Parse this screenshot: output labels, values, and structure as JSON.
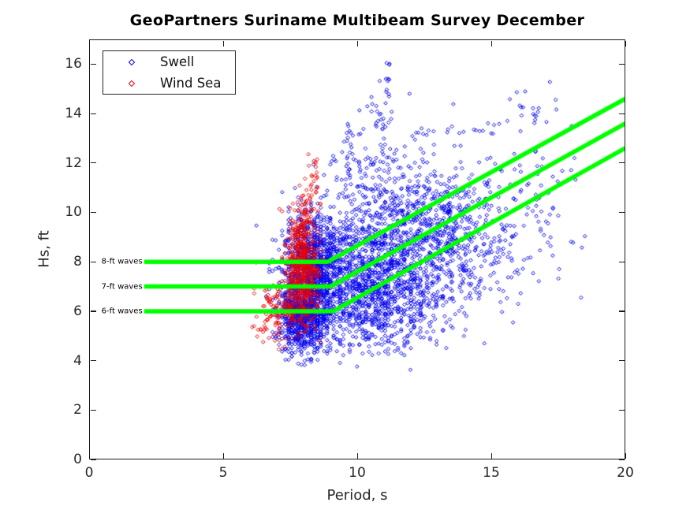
{
  "chart_data": {
    "type": "scatter",
    "title": "GeoPartners Suriname Multibeam Survey December",
    "xlabel": "Period, s",
    "ylabel": "Hs, ft",
    "xlim": [
      0,
      20
    ],
    "ylim": [
      0,
      17
    ],
    "xticks": [
      "0",
      "5",
      "10",
      "15",
      "20"
    ],
    "yticks": [
      "0",
      "2",
      "4",
      "6",
      "8",
      "10",
      "12",
      "14",
      "16"
    ],
    "grid": false,
    "legend_position": "upper-left",
    "background_color": "#ffffff",
    "axis_color": "#1a1a1a",
    "series": [
      {
        "name": "Swell",
        "color": "#0000EE",
        "marker": "open-diamond",
        "approx_count": 4300,
        "clusters": [
          {
            "kind": "gaussian",
            "cx": 8.0,
            "cy": 5.9,
            "sx": 0.5,
            "sy": 0.85,
            "n": 850,
            "ymin": 3.75,
            "qx": 0.12
          },
          {
            "kind": "gaussian",
            "cx": 8.35,
            "cy": 8.0,
            "sx": 0.55,
            "sy": 1.05,
            "n": 750,
            "qx": 0.12
          },
          {
            "kind": "gaussian",
            "cx": 10.5,
            "cy": 7.2,
            "sx": 1.25,
            "sy": 1.45,
            "n": 1450,
            "ymin": 4.2,
            "qx": 0.12
          },
          {
            "kind": "gaussian",
            "cx": 13.3,
            "cy": 8.6,
            "sx": 1.1,
            "sy": 1.5,
            "n": 480
          },
          {
            "kind": "gaussian",
            "cx": 12.3,
            "cy": 10.4,
            "sx": 1.3,
            "sy": 0.8,
            "n": 220
          },
          {
            "kind": "gaussian",
            "cx": 15.9,
            "cy": 9.4,
            "sx": 1.3,
            "sy": 1.7,
            "n": 120,
            "xmax": 18.55
          },
          {
            "kind": "gaussian",
            "cx": 10.0,
            "cy": 11.4,
            "sx": 0.8,
            "sy": 0.75,
            "n": 70
          },
          {
            "kind": "band",
            "x0": 9.6,
            "x1": 17.6,
            "y0": 12.1,
            "y1": 14.45,
            "jitter": 0.4,
            "n": 65
          },
          {
            "kind": "column",
            "cx": 11.13,
            "jx": 0.07,
            "y0": 14.55,
            "y1": 16.05,
            "n": 11
          },
          {
            "kind": "gaussian",
            "cx": 10.75,
            "cy": 13.9,
            "sx": 0.3,
            "sy": 0.5,
            "n": 26
          },
          {
            "kind": "column",
            "cx": 9.72,
            "jx": 0.18,
            "y0": 11.9,
            "y1": 13.6,
            "n": 16
          }
        ],
        "outliers": [
          [
            18.35,
            6.55
          ],
          [
            17.3,
            10.15
          ],
          [
            18.1,
            12.2
          ],
          [
            16.65,
            12.45
          ],
          [
            11.95,
            14.8
          ],
          [
            12.4,
            13.4
          ]
        ]
      },
      {
        "name": "Wind Sea",
        "color": "#EE0000",
        "marker": "open-diamond",
        "approx_count": 780,
        "clusters": [
          {
            "kind": "gaussian",
            "cx": 7.95,
            "cy": 7.7,
            "sx": 0.3,
            "sy": 1.0,
            "n": 520,
            "xmin": 6.9,
            "ymax": 10.6,
            "qx": 0.1
          },
          {
            "kind": "gaussian",
            "cx": 7.5,
            "cy": 5.9,
            "sx": 0.45,
            "sy": 0.6,
            "n": 110
          },
          {
            "kind": "gaussian",
            "cx": 6.65,
            "cy": 6.1,
            "sx": 0.3,
            "sy": 0.75,
            "n": 45,
            "xmin": 6.05
          },
          {
            "kind": "column",
            "cx": 8.38,
            "jx": 0.14,
            "y0": 10.4,
            "y1": 12.55,
            "n": 22
          },
          {
            "kind": "gaussian",
            "cx": 8.1,
            "cy": 9.9,
            "sx": 0.3,
            "sy": 0.55,
            "n": 65
          }
        ],
        "outliers": [
          [
            6.15,
            5.4
          ],
          [
            6.3,
            5.25
          ]
        ]
      }
    ],
    "overlay_lines": {
      "color": "#00FF00",
      "width": 5.5,
      "lines": [
        {
          "label": "8-ft waves",
          "level": 8,
          "points": [
            [
              2.05,
              8
            ],
            [
              8.9,
              8
            ],
            [
              20,
              14.6
            ]
          ]
        },
        {
          "label": "7-ft waves",
          "level": 7,
          "points": [
            [
              2.05,
              7
            ],
            [
              9.0,
              7
            ],
            [
              20,
              13.6
            ]
          ]
        },
        {
          "label": "6-ft waves",
          "level": 6,
          "points": [
            [
              2.05,
              6
            ],
            [
              9.1,
              6
            ],
            [
              20,
              12.6
            ]
          ]
        }
      ]
    }
  }
}
